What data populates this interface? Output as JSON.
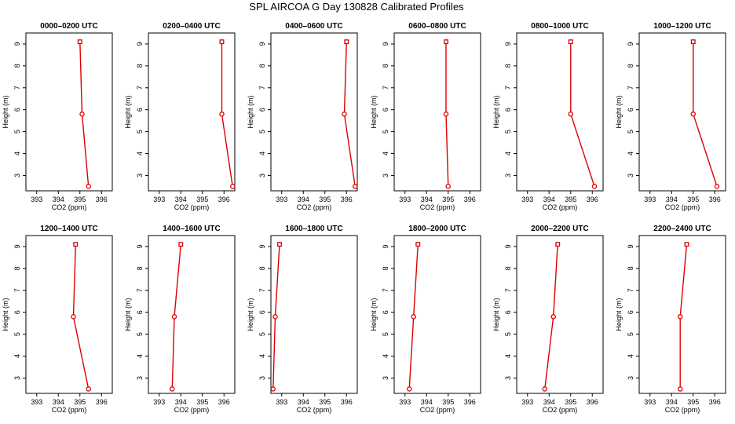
{
  "title": "SPL AIRCOA G  Day 130828  Calibrated Profiles",
  "line_color": "#dd0000",
  "chart_data": [
    {
      "type": "line",
      "title": "0000–0200 UTC",
      "xlabel": "CO2 (ppm)",
      "ylabel": "Height (m)",
      "xlim": [
        392.5,
        396.5
      ],
      "ylim": [
        2.3,
        9.5
      ],
      "xticks": [
        393,
        394,
        395,
        396
      ],
      "yticks": [
        3,
        4,
        5,
        6,
        7,
        8,
        9
      ],
      "x": [
        395.0,
        395.1,
        395.4
      ],
      "y": [
        9.1,
        5.8,
        2.5
      ]
    },
    {
      "type": "line",
      "title": "0200–0400 UTC",
      "xlabel": "CO2 (ppm)",
      "ylabel": "Height (m)",
      "xlim": [
        392.5,
        396.5
      ],
      "ylim": [
        2.3,
        9.5
      ],
      "xticks": [
        393,
        394,
        395,
        396
      ],
      "yticks": [
        3,
        4,
        5,
        6,
        7,
        8,
        9
      ],
      "x": [
        395.9,
        395.9,
        396.4
      ],
      "y": [
        9.1,
        5.8,
        2.5
      ]
    },
    {
      "type": "line",
      "title": "0400–0600 UTC",
      "xlabel": "CO2 (ppm)",
      "ylabel": "Height (m)",
      "xlim": [
        392.5,
        396.5
      ],
      "ylim": [
        2.3,
        9.5
      ],
      "xticks": [
        393,
        394,
        395,
        396
      ],
      "yticks": [
        3,
        4,
        5,
        6,
        7,
        8,
        9
      ],
      "x": [
        396.0,
        395.9,
        396.4
      ],
      "y": [
        9.1,
        5.8,
        2.5
      ]
    },
    {
      "type": "line",
      "title": "0600–0800 UTC",
      "xlabel": "CO2 (ppm)",
      "ylabel": "Height (m)",
      "xlim": [
        392.5,
        396.5
      ],
      "ylim": [
        2.3,
        9.5
      ],
      "xticks": [
        393,
        394,
        395,
        396
      ],
      "yticks": [
        3,
        4,
        5,
        6,
        7,
        8,
        9
      ],
      "x": [
        394.9,
        394.9,
        395.0
      ],
      "y": [
        9.1,
        5.8,
        2.5
      ]
    },
    {
      "type": "line",
      "title": "0800–1000 UTC",
      "xlabel": "CO2 (ppm)",
      "ylabel": "Height (m)",
      "xlim": [
        392.5,
        396.5
      ],
      "ylim": [
        2.3,
        9.5
      ],
      "xticks": [
        393,
        394,
        395,
        396
      ],
      "yticks": [
        3,
        4,
        5,
        6,
        7,
        8,
        9
      ],
      "x": [
        395.0,
        395.0,
        396.1
      ],
      "y": [
        9.1,
        5.8,
        2.5
      ]
    },
    {
      "type": "line",
      "title": "1000–1200 UTC",
      "xlabel": "CO2 (ppm)",
      "ylabel": "Height (m)",
      "xlim": [
        392.5,
        396.5
      ],
      "ylim": [
        2.3,
        9.5
      ],
      "xticks": [
        393,
        394,
        395,
        396
      ],
      "yticks": [
        3,
        4,
        5,
        6,
        7,
        8,
        9
      ],
      "x": [
        395.0,
        395.0,
        396.1
      ],
      "y": [
        9.1,
        5.8,
        2.5
      ]
    },
    {
      "type": "line",
      "title": "1200–1400 UTC",
      "xlabel": "CO2 (ppm)",
      "ylabel": "Height (m)",
      "xlim": [
        392.5,
        396.5
      ],
      "ylim": [
        2.3,
        9.5
      ],
      "xticks": [
        393,
        394,
        395,
        396
      ],
      "yticks": [
        3,
        4,
        5,
        6,
        7,
        8,
        9
      ],
      "x": [
        394.8,
        394.7,
        395.4
      ],
      "y": [
        9.1,
        5.8,
        2.5
      ]
    },
    {
      "type": "line",
      "title": "1400–1600 UTC",
      "xlabel": "CO2 (ppm)",
      "ylabel": "Height (m)",
      "xlim": [
        392.5,
        396.5
      ],
      "ylim": [
        2.3,
        9.5
      ],
      "xticks": [
        393,
        394,
        395,
        396
      ],
      "yticks": [
        3,
        4,
        5,
        6,
        7,
        8,
        9
      ],
      "x": [
        394.0,
        393.7,
        393.6
      ],
      "y": [
        9.1,
        5.8,
        2.5
      ]
    },
    {
      "type": "line",
      "title": "1600–1800 UTC",
      "xlabel": "CO2 (ppm)",
      "ylabel": "Height (m)",
      "xlim": [
        392.5,
        396.5
      ],
      "ylim": [
        2.3,
        9.5
      ],
      "xticks": [
        393,
        394,
        395,
        396
      ],
      "yticks": [
        3,
        4,
        5,
        6,
        7,
        8,
        9
      ],
      "x": [
        392.9,
        392.7,
        392.6
      ],
      "y": [
        9.1,
        5.8,
        2.5
      ]
    },
    {
      "type": "line",
      "title": "1800–2000 UTC",
      "xlabel": "CO2 (ppm)",
      "ylabel": "Height (m)",
      "xlim": [
        392.5,
        396.5
      ],
      "ylim": [
        2.3,
        9.5
      ],
      "xticks": [
        393,
        394,
        395,
        396
      ],
      "yticks": [
        3,
        4,
        5,
        6,
        7,
        8,
        9
      ],
      "x": [
        393.6,
        393.4,
        393.2
      ],
      "y": [
        9.1,
        5.8,
        2.5
      ]
    },
    {
      "type": "line",
      "title": "2000–2200 UTC",
      "xlabel": "CO2 (ppm)",
      "ylabel": "Height (m)",
      "xlim": [
        392.5,
        396.5
      ],
      "ylim": [
        2.3,
        9.5
      ],
      "xticks": [
        393,
        394,
        395,
        396
      ],
      "yticks": [
        3,
        4,
        5,
        6,
        7,
        8,
        9
      ],
      "x": [
        394.4,
        394.2,
        393.8
      ],
      "y": [
        9.1,
        5.8,
        2.5
      ]
    },
    {
      "type": "line",
      "title": "2200–2400 UTC",
      "xlabel": "CO2 (ppm)",
      "ylabel": "Height (m)",
      "xlim": [
        392.5,
        396.5
      ],
      "ylim": [
        2.3,
        9.5
      ],
      "xticks": [
        393,
        394,
        395,
        396
      ],
      "yticks": [
        3,
        4,
        5,
        6,
        7,
        8,
        9
      ],
      "x": [
        394.7,
        394.4,
        394.4
      ],
      "y": [
        9.1,
        5.8,
        2.5
      ]
    }
  ]
}
